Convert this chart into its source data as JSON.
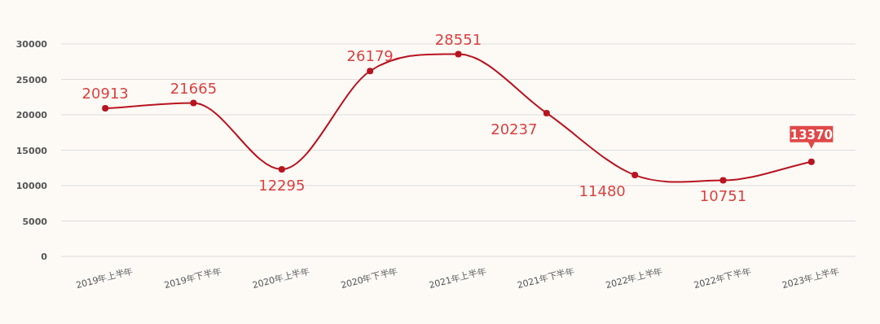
{
  "chart_data": {
    "type": "line",
    "categories": [
      "2019年上半年",
      "2019年下半年",
      "2020年上半年",
      "2020年下半年",
      "2021年上半年",
      "2021年下半年",
      "2022年上半年",
      "2022年下半年",
      "2023年上半年"
    ],
    "series": [
      {
        "color": "#b8141f",
        "values": [
          20913,
          21665,
          12295,
          26179,
          28551,
          20237,
          11480,
          10751,
          13370
        ]
      }
    ],
    "ylim": [
      0,
      30000
    ],
    "yticks": [
      0,
      5000,
      10000,
      15000,
      20000,
      25000,
      30000
    ],
    "grid": "y",
    "marker": "circle",
    "data_labels": true
  }
}
